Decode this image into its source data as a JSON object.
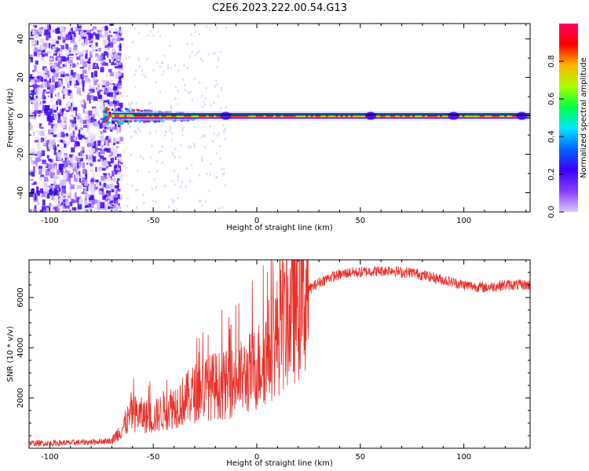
{
  "title": "C2E6.2023.222.00.54.G13",
  "colors": {
    "snr_line": "#e8302a",
    "center_line": "#000000",
    "colorbar_stops": [
      "#d8c8ff",
      "#8a3cff",
      "#3b00ff",
      "#0064ff",
      "#00e6ff",
      "#00ff46",
      "#aaff00",
      "#ffb400",
      "#ff0000",
      "#ff0064"
    ]
  },
  "chart_data": [
    {
      "type": "heatmap",
      "xlabel": "Height of straight line (km)",
      "ylabel": "Frequency (Hz)",
      "xlim": [
        -110,
        132
      ],
      "ylim": [
        -50,
        48
      ],
      "x_ticks": [
        -100,
        -50,
        0,
        50,
        100
      ],
      "y_ticks": [
        -40,
        -20,
        0,
        20,
        40
      ],
      "colorbar": {
        "label": "Normalized spectral amplitude",
        "range": [
          0,
          1
        ],
        "ticks": [
          "0.0",
          "0.2",
          "0.4",
          "0.6",
          "0.8"
        ]
      },
      "ridge_frequency_hz": 0,
      "noise_region_km": [
        -110,
        -70
      ],
      "transition_region_km": [
        -70,
        -35
      ]
    },
    {
      "type": "line",
      "xlabel": "Height of straight line (km)",
      "ylabel": "SNR (10 * v/v)",
      "xlim": [
        -110,
        132
      ],
      "ylim": [
        0,
        7500
      ],
      "x_ticks": [
        -100,
        -50,
        0,
        50,
        100
      ],
      "y_ticks": [
        2000,
        4000,
        6000
      ],
      "series": [
        {
          "x": [
            -110,
            -100,
            -90,
            -80,
            -70,
            -65,
            -60,
            -55,
            -50,
            -45,
            -40,
            -35,
            -30,
            -25,
            -20,
            -15,
            -10,
            -5,
            0,
            5,
            10,
            15,
            20,
            25,
            30,
            35,
            40,
            45,
            50,
            55,
            60,
            65,
            70,
            75,
            80,
            85,
            90,
            95,
            100,
            105,
            110,
            115,
            120,
            125,
            132
          ],
          "y": [
            200,
            200,
            220,
            250,
            300,
            800,
            1400,
            1300,
            1200,
            1500,
            1700,
            1900,
            2200,
            2400,
            2500,
            2500,
            2700,
            2900,
            3200,
            3800,
            4500,
            5200,
            5800,
            6300,
            6600,
            6800,
            6900,
            7000,
            7000,
            7050,
            7050,
            7100,
            7000,
            7000,
            6900,
            6800,
            6700,
            6600,
            6500,
            6450,
            6400,
            6450,
            6500,
            6500,
            6500
          ]
        }
      ]
    }
  ]
}
